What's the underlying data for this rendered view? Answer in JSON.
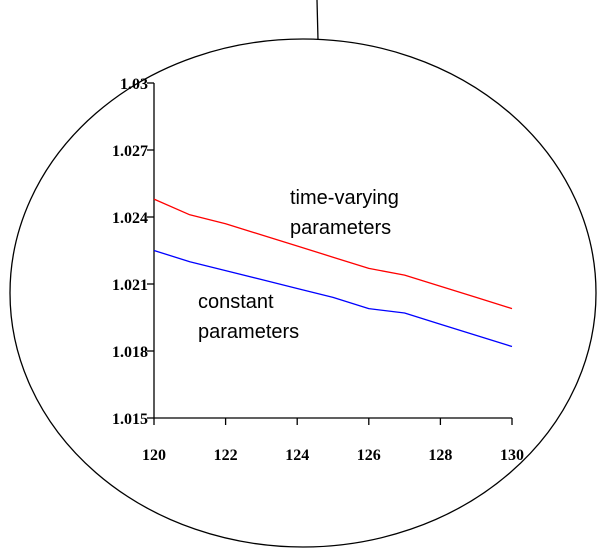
{
  "chart_data": {
    "type": "line",
    "title": "",
    "xlabel": "",
    "ylabel": "",
    "xlim": [
      120,
      130
    ],
    "ylim": [
      1.015,
      1.03
    ],
    "x_ticks": [
      "120",
      "122",
      "124",
      "126",
      "128",
      "130"
    ],
    "y_ticks": [
      "1.015",
      "1.018",
      "1.021",
      "1.024",
      "1.027",
      "1.03"
    ],
    "grid": false,
    "legend": "none",
    "series": [
      {
        "label": "time-varying parameters",
        "color": "#ff0000",
        "x": [
          120,
          121,
          122,
          123,
          124,
          125,
          126,
          127,
          128,
          129,
          130
        ],
        "y": [
          1.0248,
          1.0241,
          1.0237,
          1.0232,
          1.0227,
          1.0222,
          1.0217,
          1.0214,
          1.0209,
          1.0204,
          1.0199
        ]
      },
      {
        "label": "constant parameters",
        "color": "#0000ff",
        "x": [
          120,
          121,
          122,
          123,
          124,
          125,
          126,
          127,
          128,
          129,
          130
        ],
        "y": [
          1.0225,
          1.022,
          1.0216,
          1.0212,
          1.0208,
          1.0204,
          1.0199,
          1.0197,
          1.0192,
          1.0187,
          1.0182
        ]
      }
    ],
    "annotations": [
      {
        "lines": [
          "time-varying",
          "parameters"
        ]
      },
      {
        "lines": [
          "constant",
          "parameters"
        ]
      }
    ]
  }
}
